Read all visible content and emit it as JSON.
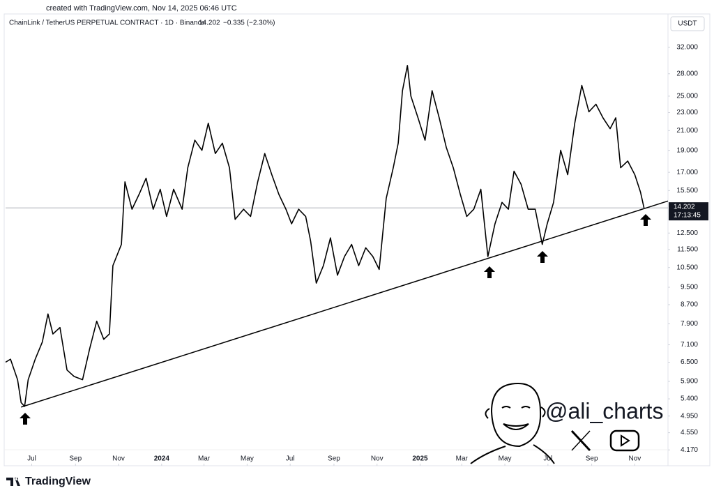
{
  "header": {
    "created": "created with TradingView.com, Nov 14, 2025 06:46 UTC",
    "symbol": "ChainLink / TetherUS PERPETUAL CONTRACT · 1D · Binance",
    "change": "−0.335 (−2.30%)",
    "currency": "USDT"
  },
  "watermark": "@ali_charts",
  "footer": "TradingView",
  "chart_data": {
    "type": "line",
    "color": "#000000",
    "log_scale": true,
    "grid": false,
    "last_price": 14.202,
    "countdown": "17:13:45",
    "x": [
      "2023-05-25",
      "2023-06-01",
      "2023-06-11",
      "2023-06-16",
      "2023-06-21",
      "2023-06-26",
      "2023-07-06",
      "2023-07-16",
      "2023-07-24",
      "2023-07-31",
      "2023-08-10",
      "2023-08-20",
      "2023-08-30",
      "2023-09-11",
      "2023-09-21",
      "2023-10-01",
      "2023-10-11",
      "2023-10-19",
      "2023-10-24",
      "2023-11-05",
      "2023-11-10",
      "2023-11-20",
      "2023-11-30",
      "2023-12-10",
      "2023-12-20",
      "2023-12-30",
      "2024-01-08",
      "2024-01-18",
      "2024-01-30",
      "2024-02-07",
      "2024-02-17",
      "2024-02-27",
      "2024-03-07",
      "2024-03-17",
      "2024-03-27",
      "2024-04-06",
      "2024-04-14",
      "2024-04-26",
      "2024-05-06",
      "2024-05-16",
      "2024-05-26",
      "2024-06-05",
      "2024-06-15",
      "2024-06-25",
      "2024-07-03",
      "2024-07-13",
      "2024-07-23",
      "2024-07-30",
      "2024-08-07",
      "2024-08-17",
      "2024-08-27",
      "2024-09-06",
      "2024-09-16",
      "2024-09-26",
      "2024-10-06",
      "2024-10-16",
      "2024-10-26",
      "2024-11-04",
      "2024-11-14",
      "2024-11-24",
      "2024-12-01",
      "2024-12-07",
      "2024-12-14",
      "2024-12-19",
      "2024-12-29",
      "2025-01-08",
      "2025-01-18",
      "2025-01-28",
      "2025-02-07",
      "2025-02-17",
      "2025-02-27",
      "2025-03-08",
      "2025-03-18",
      "2025-03-28",
      "2025-04-07",
      "2025-04-17",
      "2025-04-27",
      "2025-05-06",
      "2025-05-14",
      "2025-05-24",
      "2025-06-03",
      "2025-06-13",
      "2025-06-23",
      "2025-06-30",
      "2025-07-09",
      "2025-07-19",
      "2025-07-29",
      "2025-08-08",
      "2025-08-18",
      "2025-08-28",
      "2025-09-07",
      "2025-09-17",
      "2025-09-27",
      "2025-10-05",
      "2025-10-12",
      "2025-10-22",
      "2025-11-01",
      "2025-11-09",
      "2025-11-14"
    ],
    "values": [
      6.5,
      6.6,
      5.95,
      5.3,
      5.2,
      5.95,
      6.6,
      7.2,
      8.3,
      7.5,
      7.75,
      6.25,
      6.05,
      5.95,
      6.95,
      8.0,
      7.3,
      7.5,
      10.6,
      11.8,
      16.2,
      14.1,
      15.2,
      16.5,
      14.1,
      15.6,
      13.6,
      15.6,
      14.1,
      17.4,
      20.0,
      19.0,
      21.8,
      18.7,
      19.7,
      17.4,
      13.4,
      14.1,
      13.6,
      16.2,
      18.7,
      16.8,
      15.2,
      14.1,
      13.1,
      14.1,
      13.6,
      12.0,
      9.7,
      10.6,
      12.2,
      10.1,
      11.1,
      11.8,
      10.6,
      11.6,
      11.1,
      10.4,
      14.9,
      17.4,
      19.7,
      25.7,
      29.2,
      25.0,
      22.4,
      20.0,
      25.7,
      22.4,
      19.3,
      17.4,
      15.2,
      13.6,
      14.1,
      15.6,
      11.1,
      13.1,
      14.6,
      14.1,
      17.1,
      16.0,
      14.1,
      14.1,
      11.8,
      13.1,
      14.6,
      19.0,
      16.8,
      21.8,
      26.4,
      23.1,
      24.0,
      22.4,
      21.2,
      22.4,
      17.4,
      18.0,
      16.8,
      15.4,
      14.202
    ],
    "trendline": {
      "x": [
        "2023-06-16",
        "2025-12-18"
      ],
      "values": [
        5.18,
        14.7
      ]
    },
    "xlim": [
      "2023-05-25",
      "2025-12-18"
    ],
    "xticks": [
      {
        "value": "2023-07",
        "label": "Jul"
      },
      {
        "value": "2023-09",
        "label": "Sep"
      },
      {
        "value": "2023-11",
        "label": "Nov"
      },
      {
        "value": "2024-01",
        "label": "2024"
      },
      {
        "value": "2024-03",
        "label": "Mar"
      },
      {
        "value": "2024-05",
        "label": "May"
      },
      {
        "value": "2024-07",
        "label": "Jul"
      },
      {
        "value": "2024-09",
        "label": "Sep"
      },
      {
        "value": "2024-11",
        "label": "Nov"
      },
      {
        "value": "2025-01",
        "label": "2025"
      },
      {
        "value": "2025-03",
        "label": "Mar"
      },
      {
        "value": "2025-05",
        "label": "May"
      },
      {
        "value": "2025-07",
        "label": "Jul"
      },
      {
        "value": "2025-09",
        "label": "Sep"
      },
      {
        "value": "2025-11",
        "label": "Nov"
      }
    ],
    "ylim": [
      3.89,
      34.7
    ],
    "yticks": [
      {
        "value": 32,
        "label": "32.000"
      },
      {
        "value": 28,
        "label": "28.000"
      },
      {
        "value": 25,
        "label": "25.000"
      },
      {
        "value": 23,
        "label": "23.000"
      },
      {
        "value": 21,
        "label": "21.000"
      },
      {
        "value": 19,
        "label": "19.000"
      },
      {
        "value": 17,
        "label": "17.000"
      },
      {
        "value": 15.5,
        "label": "15.500"
      },
      {
        "value": 12.5,
        "label": "12.500"
      },
      {
        "value": 11.5,
        "label": "11.500"
      },
      {
        "value": 10.5,
        "label": "10.500"
      },
      {
        "value": 9.5,
        "label": "9.500"
      },
      {
        "value": 8.7,
        "label": "8.700"
      },
      {
        "value": 7.9,
        "label": "7.900"
      },
      {
        "value": 7.1,
        "label": "7.100"
      },
      {
        "value": 6.5,
        "label": "6.500"
      },
      {
        "value": 5.9,
        "label": "5.900"
      },
      {
        "value": 5.4,
        "label": "5.400"
      },
      {
        "value": 4.95,
        "label": "4.950"
      },
      {
        "value": 4.55,
        "label": "4.550"
      },
      {
        "value": 4.17,
        "label": "4.170"
      }
    ]
  }
}
